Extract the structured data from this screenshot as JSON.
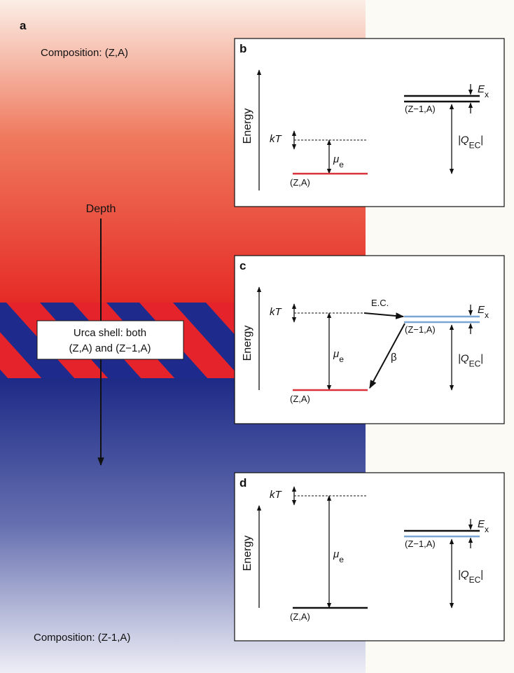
{
  "figure": {
    "panel_a": {
      "label": "a",
      "composition_top": "Composition: (Z,A)",
      "depth": "Depth",
      "urca_line1": "Urca shell: both",
      "urca_line2": "(Z,A) and (Z−1,A)",
      "composition_bottom": "Composition: (Z-1,A)"
    },
    "panels": [
      {
        "label": "b",
        "energy": "Energy",
        "kT": "kT",
        "mu": {
          "symbol": "μ",
          "sub": "e"
        },
        "lower_state": "(Z,A)",
        "upper_state": "(Z−1,A)",
        "Ex": {
          "symbol": "E",
          "sub": "x"
        },
        "Q": {
          "open": "|Q",
          "sub": "EC",
          "close": "|"
        }
      },
      {
        "label": "c",
        "energy": "Energy",
        "kT": "kT",
        "mu": {
          "symbol": "μ",
          "sub": "e"
        },
        "lower_state": "(Z,A)",
        "upper_state": "(Z−1,A)",
        "Ex": {
          "symbol": "E",
          "sub": "x"
        },
        "Q": {
          "open": "|Q",
          "sub": "EC",
          "close": "|"
        },
        "ec": "E.C.",
        "beta": "β"
      },
      {
        "label": "d",
        "energy": "Energy",
        "kT": "kT",
        "mu": {
          "symbol": "μ",
          "sub": "e"
        },
        "lower_state": "(Z,A)",
        "upper_state": "(Z−1,A)",
        "Ex": {
          "symbol": "E",
          "sub": "x"
        },
        "Q": {
          "open": "|Q",
          "sub": "EC",
          "close": "|"
        }
      }
    ]
  }
}
